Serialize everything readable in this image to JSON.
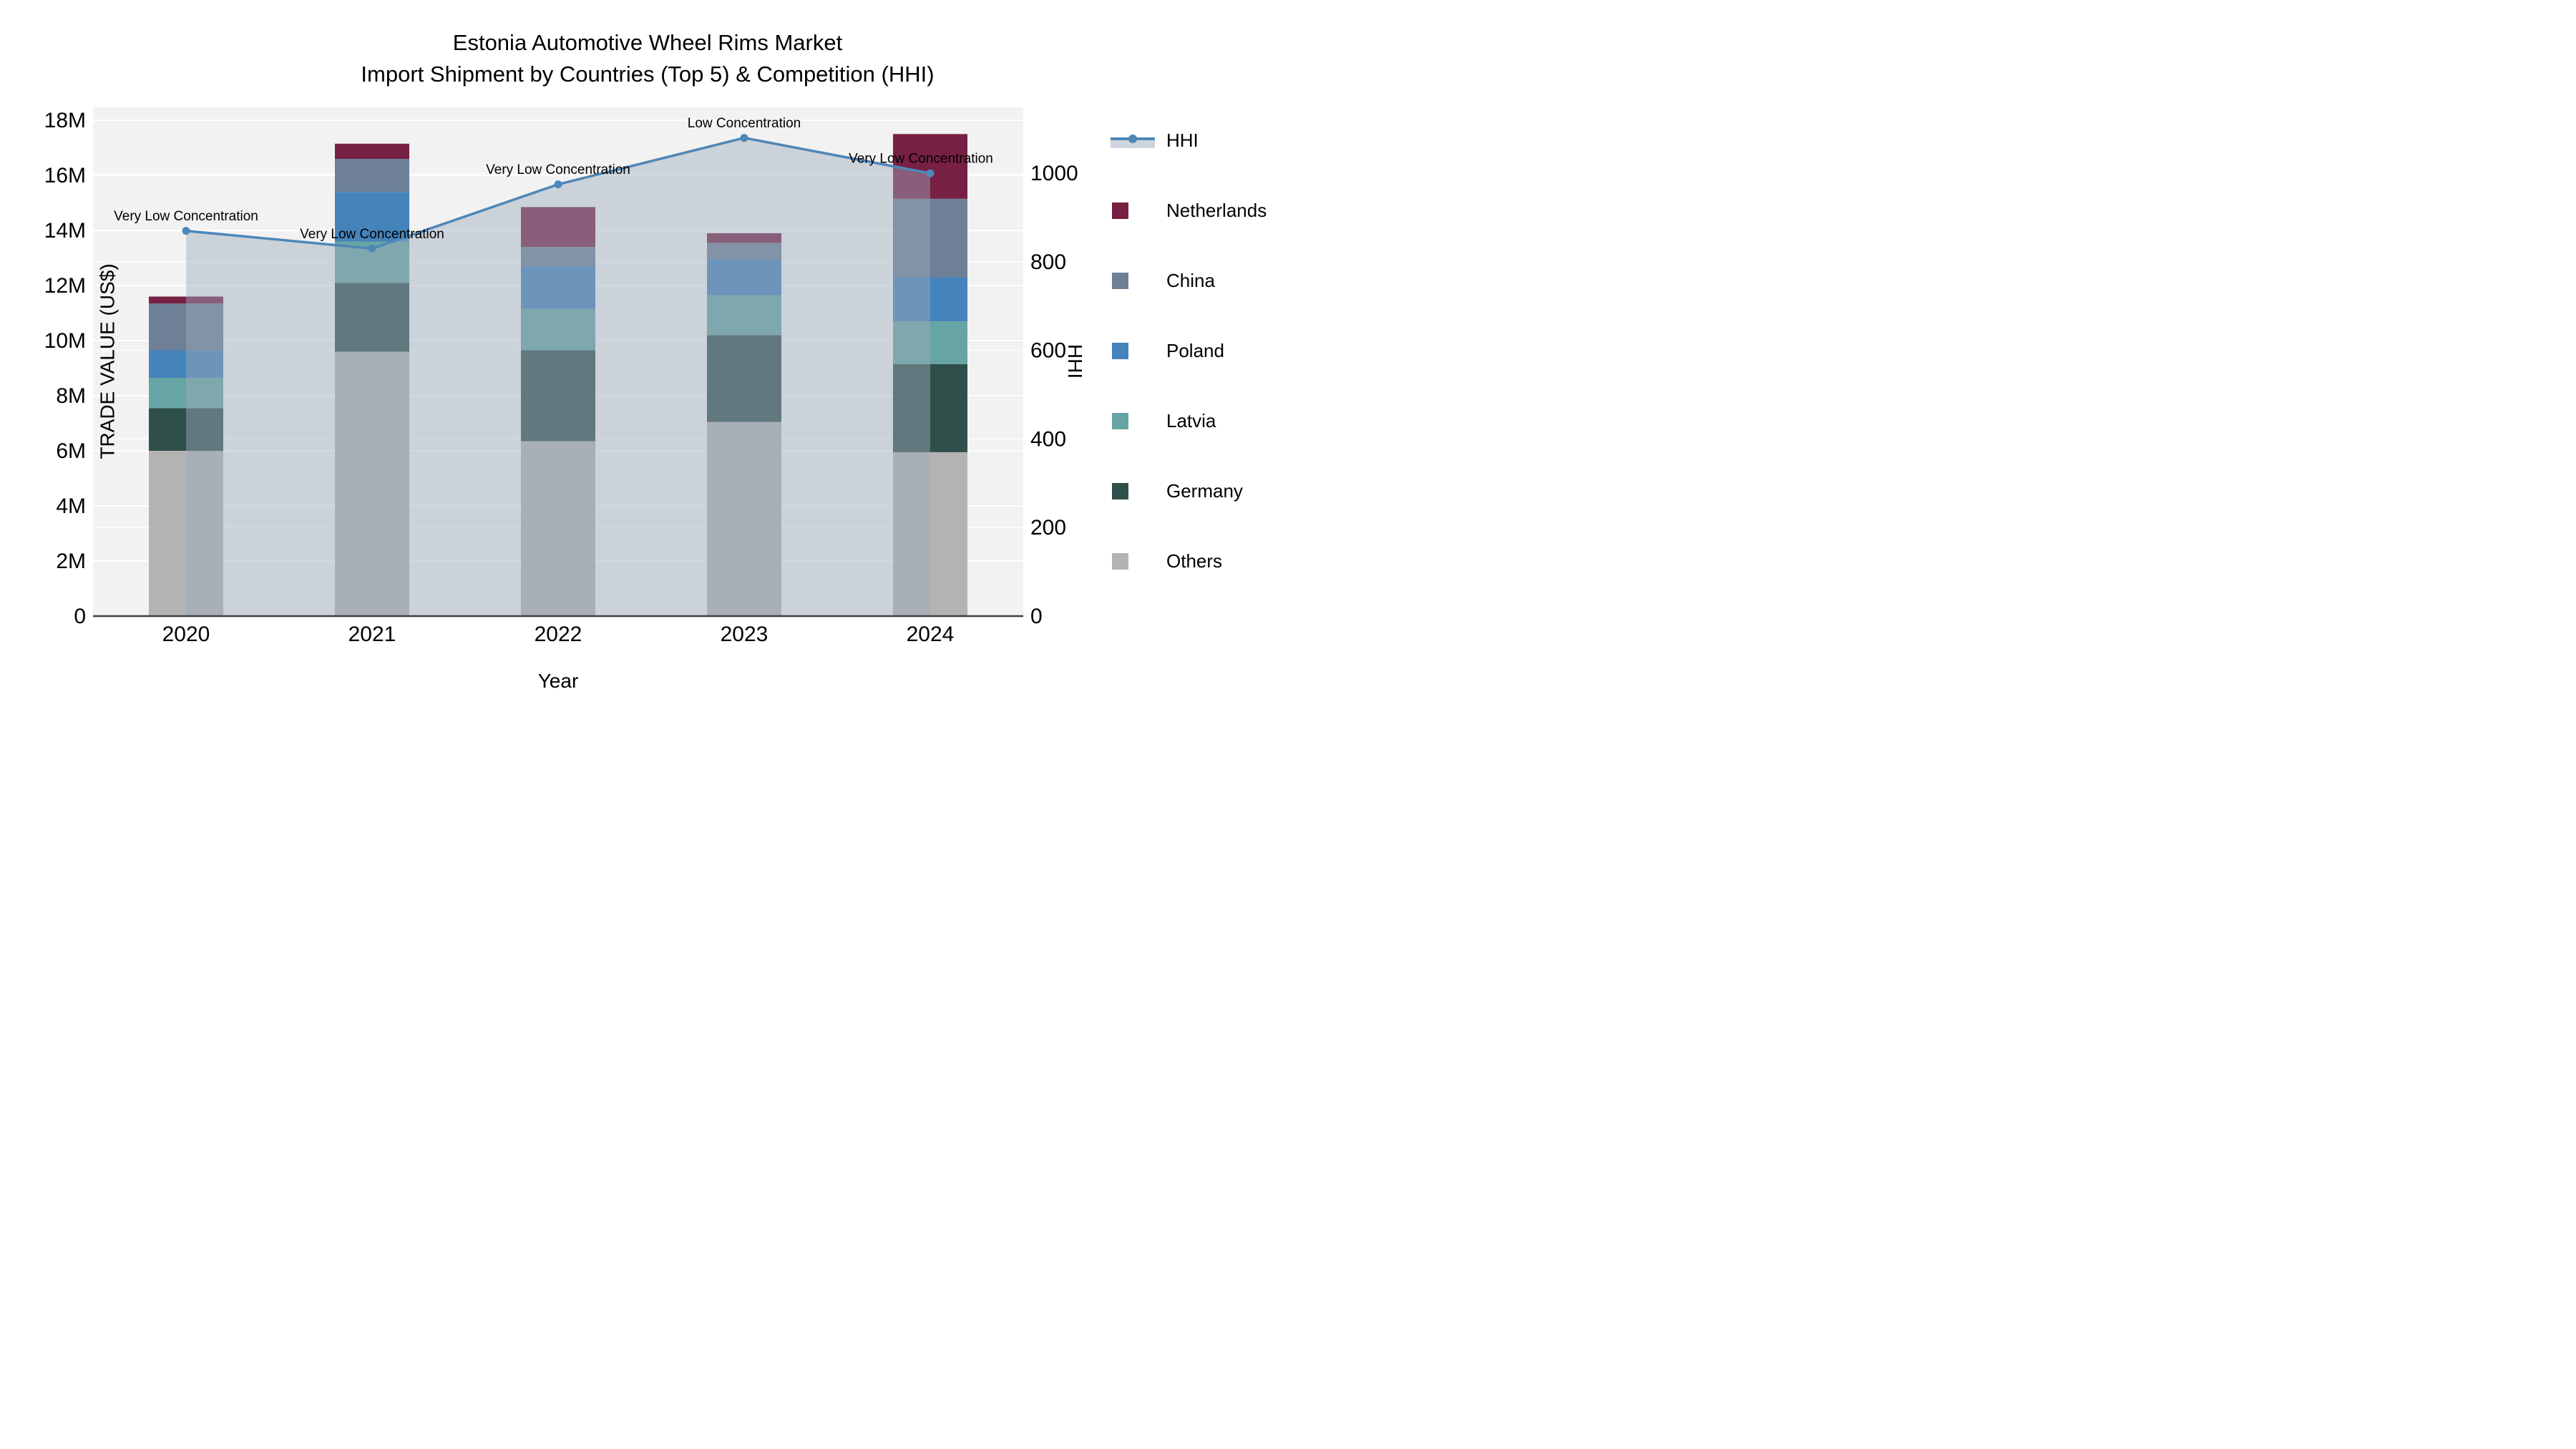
{
  "title": {
    "line1": "Estonia Automotive Wheel Rims Market",
    "line2": "Import Shipment by Countries (Top 5) & Competition (HHI)"
  },
  "axes": {
    "y_left": {
      "title": "TRADE VALUE (US$)",
      "tick_labels": [
        "0",
        "2M",
        "4M",
        "6M",
        "8M",
        "10M",
        "12M",
        "14M",
        "16M",
        "18M"
      ],
      "tick_values": [
        0,
        2,
        4,
        6,
        8,
        10,
        12,
        14,
        16,
        18
      ]
    },
    "y_right": {
      "title": "HHI",
      "tick_labels": [
        "0",
        "200",
        "400",
        "600",
        "800",
        "1000"
      ],
      "tick_values": [
        0,
        200,
        400,
        600,
        800,
        1000
      ]
    },
    "x": {
      "title": "Year",
      "categories": [
        "2020",
        "2021",
        "2022",
        "2023",
        "2024"
      ]
    }
  },
  "legend": {
    "items": [
      {
        "label": "HHI",
        "type": "line"
      },
      {
        "label": "Netherlands",
        "type": "square"
      },
      {
        "label": "China",
        "type": "square"
      },
      {
        "label": "Poland",
        "type": "square"
      },
      {
        "label": "Latvia",
        "type": "square"
      },
      {
        "label": "Germany",
        "type": "square"
      },
      {
        "label": "Others",
        "type": "square"
      }
    ]
  },
  "chart_data": {
    "type": "combo: stacked bar (left axis) + line with area fill (right axis)",
    "categories": [
      "2020",
      "2021",
      "2022",
      "2023",
      "2024"
    ],
    "value_unit": "trade value, US$ millions (left axis)",
    "series": [
      {
        "name": "Others",
        "color": "#b3b3b3",
        "values": [
          6.0,
          9.6,
          6.35,
          7.05,
          5.95
        ]
      },
      {
        "name": "Germany",
        "color": "#2f4f4b",
        "values": [
          1.55,
          2.5,
          3.3,
          3.15,
          3.2
        ]
      },
      {
        "name": "Latvia",
        "color": "#66a5a3",
        "values": [
          1.1,
          1.5,
          1.5,
          1.45,
          1.55
        ]
      },
      {
        "name": "Poland",
        "color": "#4583bb",
        "values": [
          1.0,
          1.8,
          1.55,
          1.3,
          1.6
        ]
      },
      {
        "name": "China",
        "color": "#6e8096",
        "values": [
          1.7,
          1.2,
          0.7,
          0.6,
          2.85
        ]
      },
      {
        "name": "Netherlands",
        "color": "#772044",
        "values": [
          0.25,
          0.55,
          1.45,
          0.35,
          2.35
        ]
      }
    ],
    "bar_totals": [
      11.6,
      17.15,
      14.85,
      13.9,
      17.5
    ],
    "line_series": {
      "name": "HHI",
      "axis": "right",
      "color": "#4e87b9",
      "area_fill": "rgba(158,170,188,0.45)",
      "values": [
        870,
        830,
        975,
        1080,
        1000
      ]
    },
    "annotations": [
      {
        "category": "2020",
        "text": "Very Low Concentration"
      },
      {
        "category": "2021",
        "text": "Very Low Concentration"
      },
      {
        "category": "2022",
        "text": "Very Low Concentration"
      },
      {
        "category": "2023",
        "text": "Low Concentration"
      },
      {
        "category": "2024",
        "text": "Very Low Concentration"
      }
    ],
    "ylim_left": [
      0,
      18.47
    ],
    "ylim_right": [
      0,
      1149
    ],
    "grid": true,
    "plot_background": "#f2f2f2",
    "gridline_color": "#ffffff",
    "legend_position": "right"
  }
}
